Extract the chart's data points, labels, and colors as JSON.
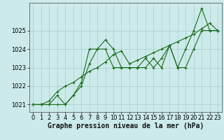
{
  "background_color": "#cceaea",
  "grid_color": "#aacccc",
  "line_color": "#1a6b1a",
  "marker_color": "#1a6b1a",
  "title": "Graphe pression niveau de la mer (hPa)",
  "title_fontsize": 7.0,
  "tick_fontsize": 6.0,
  "ylim": [
    1020.6,
    1026.5
  ],
  "xlim": [
    -0.5,
    23.5
  ],
  "yticks": [
    1021,
    1022,
    1023,
    1024,
    1025
  ],
  "xticks": [
    0,
    1,
    2,
    3,
    4,
    5,
    6,
    7,
    8,
    9,
    10,
    11,
    12,
    13,
    14,
    15,
    16,
    17,
    18,
    19,
    20,
    21,
    22,
    23
  ],
  "series": [
    [
      1021.0,
      1021.0,
      1021.0,
      1021.0,
      1021.0,
      1021.5,
      1022.2,
      1024.0,
      1024.0,
      1024.5,
      1024.0,
      1023.0,
      1023.0,
      1023.0,
      1023.0,
      1023.5,
      1023.0,
      1024.2,
      1023.0,
      1024.0,
      1025.0,
      1026.2,
      1025.0,
      1025.0
    ],
    [
      1021.0,
      1021.0,
      1021.0,
      1021.5,
      1021.0,
      1021.5,
      1022.0,
      1023.2,
      1024.0,
      1024.0,
      1023.0,
      1023.0,
      1023.0,
      1023.0,
      1023.5,
      1023.0,
      1023.5,
      1024.2,
      1023.0,
      1023.0,
      1024.0,
      1025.0,
      1025.0,
      1025.0
    ],
    [
      1021.0,
      1021.0,
      1021.2,
      1021.7,
      1022.0,
      1022.2,
      1022.5,
      1022.8,
      1023.0,
      1023.3,
      1023.7,
      1023.9,
      1023.2,
      1023.4,
      1023.6,
      1023.8,
      1024.0,
      1024.2,
      1024.4,
      1024.6,
      1024.8,
      1025.1,
      1025.4,
      1025.0
    ]
  ]
}
